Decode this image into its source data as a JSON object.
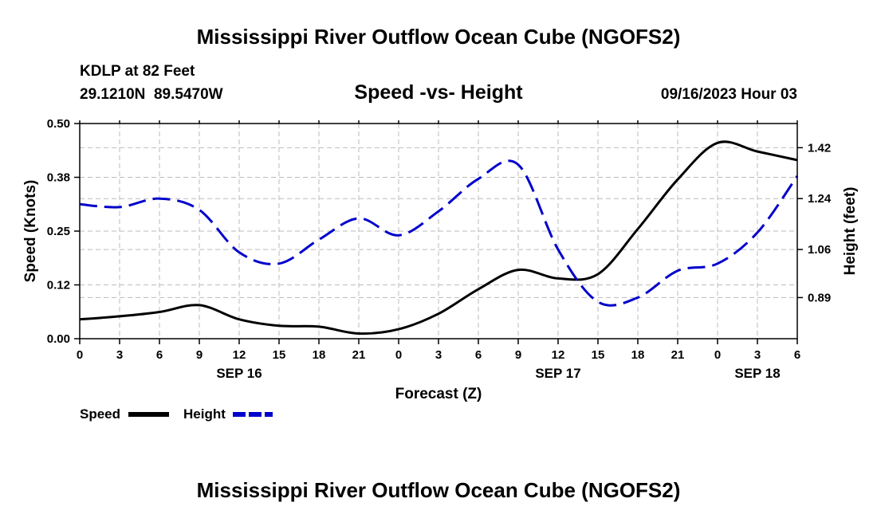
{
  "header": {
    "title": "Mississippi River Outflow Ocean Cube (NGOFS2)",
    "station": "KDLP at 82 Feet",
    "coords": "29.1210N  89.5470W",
    "subtitle": "Speed -vs- Height",
    "datetime": "09/16/2023 Hour 03"
  },
  "footer": {
    "title": "Mississippi River Outflow Ocean Cube (NGOFS2)"
  },
  "legend": {
    "speed_label": "Speed",
    "height_label": "Height"
  },
  "colors": {
    "speed": "#000000",
    "height": "#0000cc",
    "grid": "#bbbbbb"
  },
  "chart_data": {
    "type": "line",
    "title": "Speed -vs- Height",
    "xlabel": "Forecast (Z)",
    "ylabel": "Speed (Knots)",
    "y2label": "Height (feet)",
    "xlim": [
      0,
      54
    ],
    "ylim": [
      0,
      0.5
    ],
    "y2lim": [
      0.7446,
      1.5055
    ],
    "x_ticks": [
      0,
      3,
      6,
      9,
      12,
      15,
      18,
      21,
      24,
      27,
      30,
      33,
      36,
      39,
      42,
      45,
      48,
      51,
      54
    ],
    "x_tick_labels": [
      "0",
      "3",
      "6",
      "9",
      "12",
      "15",
      "18",
      "21",
      "0",
      "3",
      "6",
      "9",
      "12",
      "15",
      "18",
      "21",
      "0",
      "3",
      "6"
    ],
    "y_ticks": [
      0,
      0.125,
      0.25,
      0.375,
      0.5
    ],
    "y_tick_labels": [
      "0.00",
      "0.12",
      "0.25",
      "0.38",
      "0.50"
    ],
    "y2_ticks": [
      0.89,
      1.06,
      1.24,
      1.42
    ],
    "y2_tick_labels": [
      "0.89",
      "1.06",
      "1.24",
      "1.42"
    ],
    "day_labels": [
      {
        "x": 12,
        "label": "SEP 16"
      },
      {
        "x": 36,
        "label": "SEP 17"
      },
      {
        "x": 51,
        "label": "SEP 18"
      }
    ],
    "series": [
      {
        "name": "Speed",
        "axis": "left",
        "style": "solid",
        "x": [
          0,
          3,
          6,
          9,
          12,
          15,
          18,
          21,
          24,
          27,
          30,
          33,
          36,
          39,
          42,
          45,
          48,
          51,
          54
        ],
        "values": [
          0.045,
          0.052,
          0.062,
          0.078,
          0.045,
          0.03,
          0.028,
          0.012,
          0.022,
          0.058,
          0.115,
          0.16,
          0.14,
          0.15,
          0.255,
          0.37,
          0.455,
          0.435,
          0.415
        ]
      },
      {
        "name": "Height",
        "axis": "right",
        "style": "dashed",
        "x": [
          0,
          3,
          6,
          9,
          12,
          15,
          18,
          21,
          24,
          27,
          30,
          33,
          36,
          39,
          42,
          45,
          48,
          51,
          54
        ],
        "values": [
          1.22,
          1.21,
          1.24,
          1.2,
          1.05,
          1.01,
          1.095,
          1.17,
          1.11,
          1.195,
          1.31,
          1.36,
          1.06,
          0.875,
          0.89,
          0.985,
          1.01,
          1.12,
          1.32
        ]
      }
    ]
  }
}
